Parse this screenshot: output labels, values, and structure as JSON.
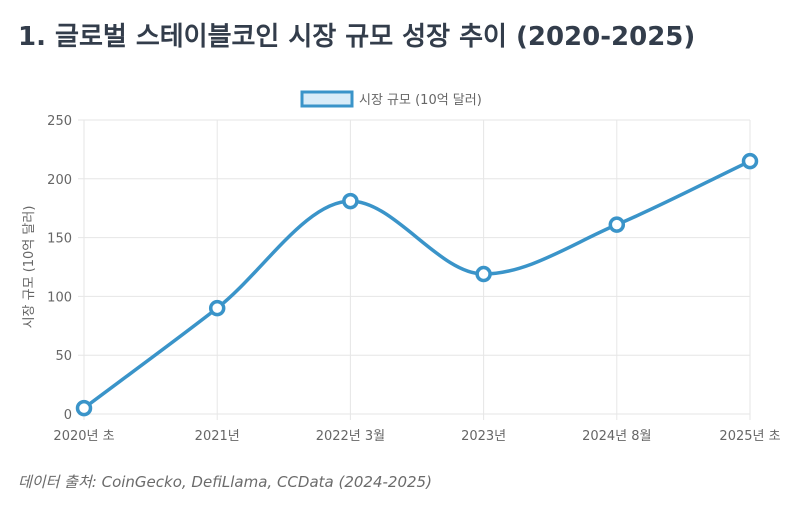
{
  "page": {
    "title": "1. 글로벌 스테이블코인 시장 규모 성장 추이 (2020-2025)",
    "source_prefix": "데이터 출처: ",
    "source_sources": "CoinGecko, DefiLlama, CCData (2024-2025)"
  },
  "colors": {
    "line": "#3a94c9",
    "legend_fill": "#d9ecf8",
    "grid": "#e6e6e6",
    "axis_text": "#666666"
  },
  "chart_data": {
    "type": "line",
    "title": "1. 글로벌 스테이블코인 시장 규모 성장 추이 (2020-2025)",
    "categories": [
      "2020년 초",
      "2021년",
      "2022년 3월",
      "2023년",
      "2024년 8월",
      "2025년 초"
    ],
    "series": [
      {
        "name": "시장 규모 (10억 달러)",
        "values": [
          5,
          90,
          181,
          119,
          161,
          215
        ]
      }
    ],
    "xlabel": "",
    "ylabel": "시장 규모 (10억 달러)",
    "ylim": [
      0,
      250
    ],
    "yticks": [
      0,
      50,
      100,
      150,
      200,
      250
    ],
    "grid": true,
    "legend": "top-center",
    "smooth": true
  }
}
